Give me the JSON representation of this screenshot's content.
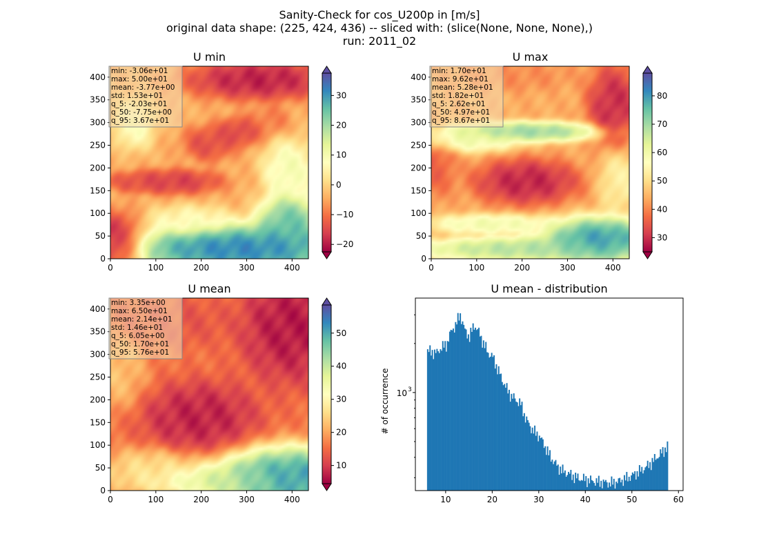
{
  "figure": {
    "title_lines": [
      "Sanity-Check for cos_U200p in [m/s]",
      "original data shape: (225, 424, 436) -- sliced with: (slice(None, None, None),)",
      "run: 2011_02"
    ],
    "colormap": "Spectral",
    "colormap_stops": [
      "#9e0142",
      "#d53e4f",
      "#f46d43",
      "#fdae61",
      "#fee08b",
      "#ffffbf",
      "#e6f598",
      "#abdda4",
      "#66c2a5",
      "#3288bd",
      "#5e4fa2"
    ]
  },
  "chart_data": [
    {
      "type": "heatmap",
      "title": "U min",
      "xlim": [
        0,
        436
      ],
      "ylim": [
        0,
        424
      ],
      "xticks": [
        0,
        100,
        200,
        300,
        400
      ],
      "yticks": [
        0,
        50,
        100,
        150,
        200,
        250,
        300,
        350,
        400
      ],
      "colorbar": {
        "range": [
          -22.5,
          37.5
        ],
        "ticks": [
          -20,
          -10,
          0,
          10,
          20,
          30
        ],
        "tick_labels": [
          "−20",
          "−10",
          "0",
          "10",
          "20",
          "30"
        ],
        "extend": "both"
      },
      "stats": [
        "min: -3.06e+01",
        "max: 5.00e+01",
        "mean: -3.77e+00",
        "std: 1.53e+01",
        "q_5: -2.03e+01",
        "q_50: -7.75e+00",
        "q_95: 3.67e+01"
      ],
      "blobs": [
        {
          "cx": 0.02,
          "cy": 0.08,
          "rx": 0.12,
          "ry": 0.12,
          "v": -22
        },
        {
          "cx": 0.75,
          "cy": 0.93,
          "rx": 0.28,
          "ry": 0.08,
          "v": -22
        },
        {
          "cx": 0.33,
          "cy": 0.4,
          "rx": 0.18,
          "ry": 0.05,
          "v": -18
        },
        {
          "cx": 0.14,
          "cy": 0.4,
          "rx": 0.12,
          "ry": 0.04,
          "v": -15
        },
        {
          "cx": 0.5,
          "cy": 0.6,
          "rx": 0.1,
          "ry": 0.07,
          "v": -16
        },
        {
          "cx": 0.65,
          "cy": 0.66,
          "rx": 0.09,
          "ry": 0.06,
          "v": -17
        },
        {
          "cx": 0.8,
          "cy": 0.72,
          "rx": 0.08,
          "ry": 0.06,
          "v": -10
        },
        {
          "cx": 0.65,
          "cy": 0.05,
          "rx": 0.45,
          "ry": 0.1,
          "v": 38
        },
        {
          "cx": 0.9,
          "cy": 0.18,
          "rx": 0.12,
          "ry": 0.12,
          "v": 30
        },
        {
          "cx": 0.12,
          "cy": 0.7,
          "rx": 0.08,
          "ry": 0.1,
          "v": 10
        },
        {
          "cx": 0.9,
          "cy": 0.46,
          "rx": 0.1,
          "ry": 0.12,
          "v": 12
        },
        {
          "cx": 0.4,
          "cy": 0.2,
          "rx": 0.16,
          "ry": 0.06,
          "v": 8
        }
      ],
      "base": -4
    },
    {
      "type": "heatmap",
      "title": "U max",
      "xlim": [
        0,
        436
      ],
      "ylim": [
        0,
        424
      ],
      "xticks": [
        0,
        100,
        200,
        300,
        400
      ],
      "yticks": [
        0,
        50,
        100,
        150,
        200,
        250,
        300,
        350,
        400
      ],
      "colorbar": {
        "range": [
          25,
          88
        ],
        "ticks": [
          30,
          40,
          50,
          60,
          70,
          80
        ],
        "tick_labels": [
          "30",
          "40",
          "50",
          "60",
          "70",
          "80"
        ],
        "extend": "both"
      },
      "stats": [
        "min: 1.70e+01",
        "max: 9.62e+01",
        "mean: 5.28e+01",
        "std: 1.82e+01",
        "q_5: 2.62e+01",
        "q_50: 4.97e+01",
        "q_95: 8.67e+01"
      ],
      "blobs": [
        {
          "cx": 0.48,
          "cy": 0.4,
          "rx": 0.2,
          "ry": 0.09,
          "v": 26
        },
        {
          "cx": 0.92,
          "cy": 0.8,
          "rx": 0.1,
          "ry": 0.16,
          "v": 27
        },
        {
          "cx": 0.4,
          "cy": 0.95,
          "rx": 0.25,
          "ry": 0.06,
          "v": 40
        },
        {
          "cx": 0.02,
          "cy": 0.48,
          "rx": 0.08,
          "ry": 0.12,
          "v": 35
        },
        {
          "cx": 0.48,
          "cy": 0.66,
          "rx": 0.3,
          "ry": 0.04,
          "v": 75
        },
        {
          "cx": 0.2,
          "cy": 0.62,
          "rx": 0.2,
          "ry": 0.05,
          "v": 62
        },
        {
          "cx": 0.85,
          "cy": 0.1,
          "rx": 0.22,
          "ry": 0.09,
          "v": 86
        },
        {
          "cx": 0.45,
          "cy": 0.05,
          "rx": 0.4,
          "ry": 0.05,
          "v": 72
        },
        {
          "cx": 0.3,
          "cy": 0.18,
          "rx": 0.25,
          "ry": 0.04,
          "v": 62
        },
        {
          "cx": 0.95,
          "cy": 0.4,
          "rx": 0.08,
          "ry": 0.12,
          "v": 55
        }
      ],
      "base": 44
    },
    {
      "type": "heatmap",
      "title": "U mean",
      "xlim": [
        0,
        436
      ],
      "ylim": [
        0,
        424
      ],
      "xticks": [
        0,
        100,
        200,
        300,
        400
      ],
      "yticks": [
        0,
        50,
        100,
        150,
        200,
        250,
        300,
        350,
        400
      ],
      "colorbar": {
        "range": [
          4.5,
          58.5
        ],
        "ticks": [
          10,
          20,
          30,
          40,
          50
        ],
        "tick_labels": [
          "10",
          "20",
          "30",
          "40",
          "50"
        ],
        "extend": "both"
      },
      "stats": [
        "min: 3.35e+00",
        "max: 6.50e+01",
        "mean: 2.14e+01",
        "std: 1.46e+01",
        "q_5: 6.05e+00",
        "q_50: 1.70e+01",
        "q_95: 5.76e+01"
      ],
      "blobs": [
        {
          "cx": 0.45,
          "cy": 0.38,
          "rx": 0.22,
          "ry": 0.14,
          "v": 6
        },
        {
          "cx": 0.92,
          "cy": 0.85,
          "rx": 0.2,
          "ry": 0.22,
          "v": 5
        },
        {
          "cx": 0.3,
          "cy": 0.88,
          "rx": 0.25,
          "ry": 0.1,
          "v": 12
        },
        {
          "cx": 0.92,
          "cy": 0.06,
          "rx": 0.32,
          "ry": 0.13,
          "v": 58
        },
        {
          "cx": 0.55,
          "cy": 0.05,
          "rx": 0.28,
          "ry": 0.06,
          "v": 40
        },
        {
          "cx": 0.2,
          "cy": 0.1,
          "rx": 0.2,
          "ry": 0.09,
          "v": 28
        },
        {
          "cx": 0.02,
          "cy": 0.62,
          "rx": 0.12,
          "ry": 0.15,
          "v": 24
        }
      ],
      "base": 16
    },
    {
      "type": "bar",
      "title": "U mean - distribution",
      "ylabel": "# of occurrence",
      "yscale": "log",
      "xlim": [
        3.5,
        61
      ],
      "ylim": [
        250,
        3800
      ],
      "xticks": [
        10,
        20,
        30,
        40,
        50,
        60
      ],
      "yticks": [
        1000
      ],
      "ytick_labels": [
        "10",
        "3"
      ],
      "color": "#1f77b4",
      "bin_width": 0.25,
      "bins": [
        [
          6,
          1800
        ],
        [
          8,
          1750
        ],
        [
          9,
          1900
        ],
        [
          10,
          1950
        ],
        [
          11,
          2350
        ],
        [
          12,
          2600
        ],
        [
          13,
          3000
        ],
        [
          14,
          2400
        ],
        [
          15,
          2200
        ],
        [
          16,
          2600
        ],
        [
          17,
          2350
        ],
        [
          18,
          2000
        ],
        [
          19,
          1750
        ],
        [
          20,
          1650
        ],
        [
          21,
          1400
        ],
        [
          22,
          1200
        ],
        [
          23,
          1050
        ],
        [
          24,
          950
        ],
        [
          25,
          900
        ],
        [
          26,
          850
        ],
        [
          27,
          700
        ],
        [
          28,
          620
        ],
        [
          29,
          570
        ],
        [
          30,
          540
        ],
        [
          31,
          480
        ],
        [
          32,
          420
        ],
        [
          33,
          380
        ],
        [
          34,
          350
        ],
        [
          35,
          330
        ],
        [
          36,
          320
        ],
        [
          37,
          310
        ],
        [
          38,
          300
        ],
        [
          39,
          295
        ],
        [
          40,
          292
        ],
        [
          41,
          288
        ],
        [
          42,
          285
        ],
        [
          43,
          282
        ],
        [
          44,
          280
        ],
        [
          45,
          278
        ],
        [
          46,
          280
        ],
        [
          47,
          285
        ],
        [
          48,
          292
        ],
        [
          49,
          300
        ],
        [
          50,
          310
        ],
        [
          51,
          322
        ],
        [
          52,
          335
        ],
        [
          53,
          350
        ],
        [
          54,
          370
        ],
        [
          55,
          395
        ],
        [
          56,
          420
        ],
        [
          57,
          450
        ],
        [
          57.6,
          470
        ]
      ]
    }
  ]
}
